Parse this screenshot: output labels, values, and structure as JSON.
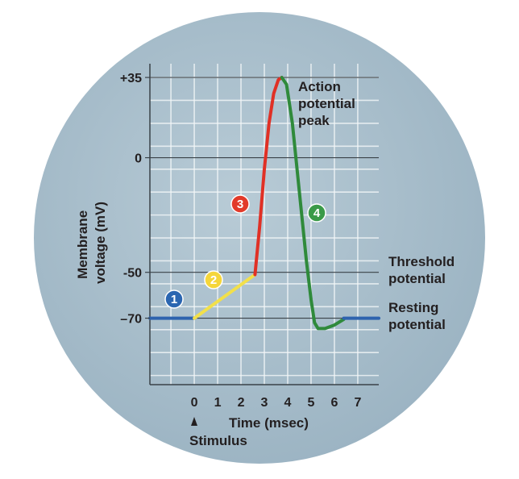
{
  "chart_data": {
    "type": "line",
    "ylabel": [
      "Membrane",
      "voltage (mV)"
    ],
    "xlabel": "Time (msec)",
    "x_ticks": [
      0,
      1,
      2,
      3,
      4,
      5,
      6,
      7
    ],
    "y_ticks": [
      {
        "value": 35,
        "label": "+35"
      },
      {
        "value": 0,
        "label": "0"
      },
      {
        "value": -50,
        "label": "-50"
      },
      {
        "value": -70,
        "label": "–70"
      }
    ],
    "xlim": [
      -1.9,
      7.9
    ],
    "ylim": [
      -99,
      41
    ],
    "grid": true,
    "stimulus_label": "Stimulus",
    "reference_lines": [
      {
        "value": 35,
        "label": [
          "Action",
          "potential",
          "peak"
        ]
      },
      {
        "value": -50,
        "label": [
          "Threshold",
          "potential"
        ]
      },
      {
        "value": -70,
        "label": [
          "Resting",
          "potential"
        ]
      }
    ],
    "phases": [
      {
        "number": "1",
        "color": "#2e63ae",
        "badge_color": "#2b66b1",
        "points": [
          [
            -1.9,
            -70
          ],
          [
            0,
            -70
          ]
        ]
      },
      {
        "number": "2",
        "color": "#f2e04a",
        "badge_color": "#f5d63a",
        "points": [
          [
            0,
            -70
          ],
          [
            2.6,
            -51
          ]
        ]
      },
      {
        "number": "3",
        "color": "#e03025",
        "badge_color": "#e23a2a",
        "points": [
          [
            2.6,
            -51
          ],
          [
            2.8,
            -30
          ],
          [
            3.0,
            -5
          ],
          [
            3.2,
            15
          ],
          [
            3.4,
            28
          ],
          [
            3.6,
            34
          ],
          [
            3.75,
            35
          ]
        ]
      },
      {
        "number": "4",
        "color": "#2f8a3b",
        "badge_color": "#3a9a48",
        "points": [
          [
            3.75,
            35
          ],
          [
            3.95,
            32
          ],
          [
            4.2,
            15
          ],
          [
            4.5,
            -15
          ],
          [
            4.8,
            -45
          ],
          [
            5.0,
            -62
          ],
          [
            5.15,
            -72
          ],
          [
            5.3,
            -74.5
          ],
          [
            5.6,
            -74.5
          ],
          [
            6.0,
            -73
          ],
          [
            6.4,
            -70.5
          ]
        ]
      },
      {
        "number": "",
        "color": "#2e63ae",
        "badge_color": "",
        "points": [
          [
            6.4,
            -70
          ],
          [
            7.9,
            -70
          ]
        ]
      }
    ]
  }
}
